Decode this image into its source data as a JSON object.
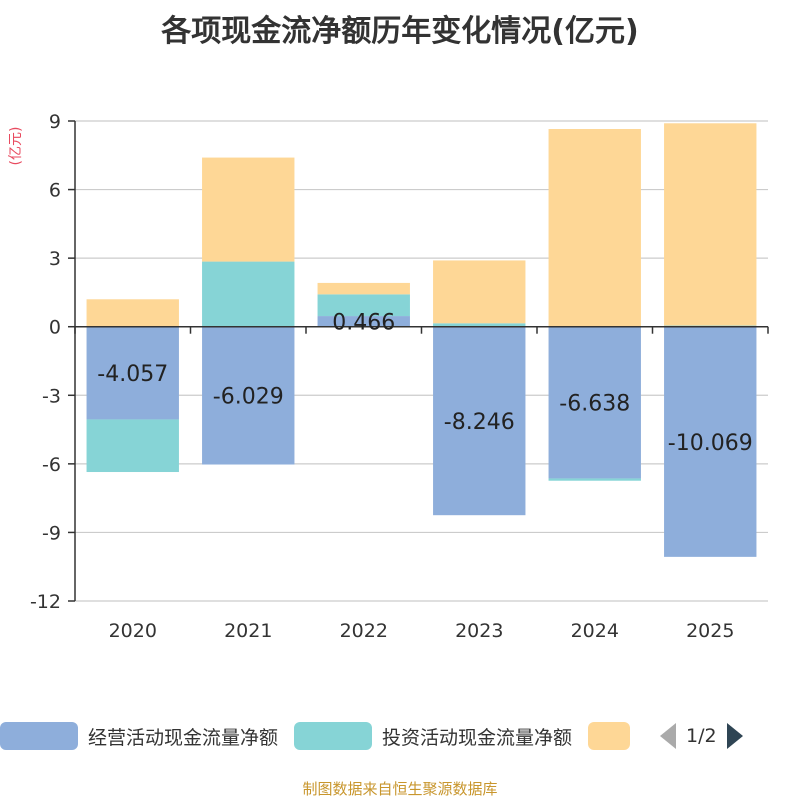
{
  "title": "各项现金流净额历年变化情况(亿元)",
  "unit_label": "(亿元)",
  "footer": "制图数据来自恒生聚源数据库",
  "colors": {
    "operating": "#8eaedb",
    "investing": "#86d4d6",
    "financing": "#fed796",
    "unit_label": "#e84a5f",
    "grid": "#cccccc",
    "axis": "#333333"
  },
  "legend": {
    "items": [
      {
        "label": "经营活动现金流量净额",
        "color": "#8eaedb"
      },
      {
        "label": "投资活动现金流量净额",
        "color": "#86d4d6"
      },
      {
        "label": "",
        "color": "#fed796"
      }
    ],
    "page": "1/2"
  },
  "chart_data": {
    "type": "bar",
    "stacked": true,
    "title": "各项现金流净额历年变化情况(亿元)",
    "ylabel": "(亿元)",
    "categories": [
      "2020",
      "2021",
      "2022",
      "2023",
      "2024",
      "2025"
    ],
    "ylim": [
      -12,
      9
    ],
    "yticks": [
      9,
      6,
      3,
      0,
      -3,
      -6,
      -9,
      -12
    ],
    "ytick_labels": [
      "9",
      "6",
      "3",
      "0",
      "-3",
      "-6",
      "-9",
      "-12"
    ],
    "series": [
      {
        "name": "经营活动现金流量净额",
        "values": [
          -4.057,
          -6.029,
          0.466,
          -8.246,
          -6.638,
          -10.069
        ]
      },
      {
        "name": "投资活动现金流量净额",
        "values": [
          -2.3,
          2.85,
          0.95,
          0.15,
          -0.1,
          0.05
        ]
      },
      {
        "name": "",
        "values": [
          1.2,
          4.55,
          0.5,
          2.75,
          8.65,
          8.85
        ]
      }
    ],
    "data_labels": [
      "-4.057",
      "-6.029",
      "0.466",
      "-8.246",
      "-6.638",
      "-10.069"
    ]
  }
}
